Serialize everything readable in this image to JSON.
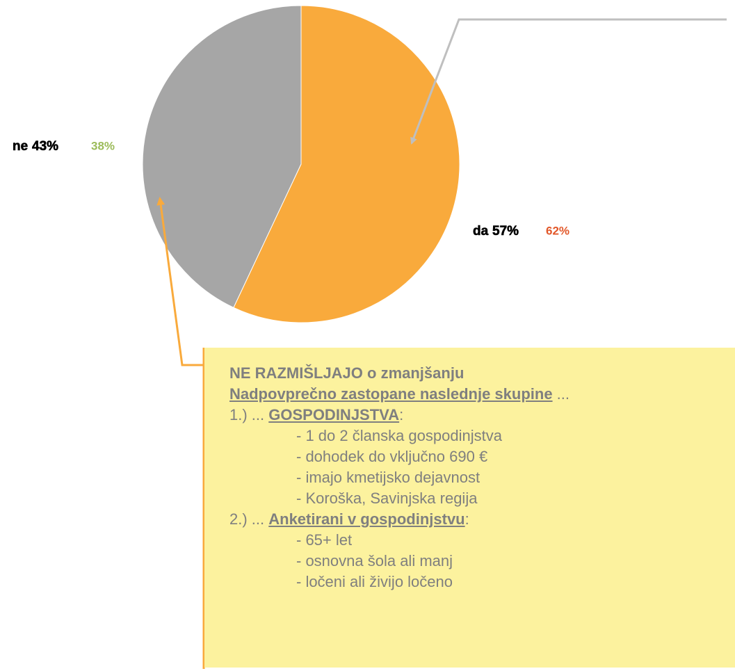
{
  "chart_data": {
    "type": "pie",
    "categories": [
      "da",
      "ne"
    ],
    "colors": [
      "#f9aa3c",
      "#a6a6a6"
    ],
    "series": [
      {
        "values": [
          57,
          43
        ],
        "value_labels": [
          "57%",
          "43%"
        ]
      },
      {
        "values": [
          62,
          38
        ],
        "value_labels": [
          "62%",
          "38%"
        ],
        "colors": [
          "#e2582a",
          "#9bbb59"
        ]
      }
    ]
  },
  "callout": {
    "title": "NE RAZMIŠLJAJO o zmanjšanju",
    "subtitle": [
      "Nadpovprečno zastopane naslednje skupine",
      " ..."
    ],
    "groups": [
      {
        "prefix": "1.) ... ",
        "name": "GOSPODINJSTVA",
        "suffix": ":",
        "items": [
          "- 1 do 2 članska gospodinjstva",
          "- dohodek do vključno 690 €",
          "- imajo kmetijsko dejavnost",
          "- Koroška, Savinjska regija"
        ]
      },
      {
        "prefix": "2.) ... ",
        "name": "Anketirani v gospodinjstvu",
        "suffix": ":",
        "items": [
          "- 65+ let",
          "- osnovna šola ali manj",
          "- ločeni ali živijo ločeno"
        ]
      }
    ]
  }
}
